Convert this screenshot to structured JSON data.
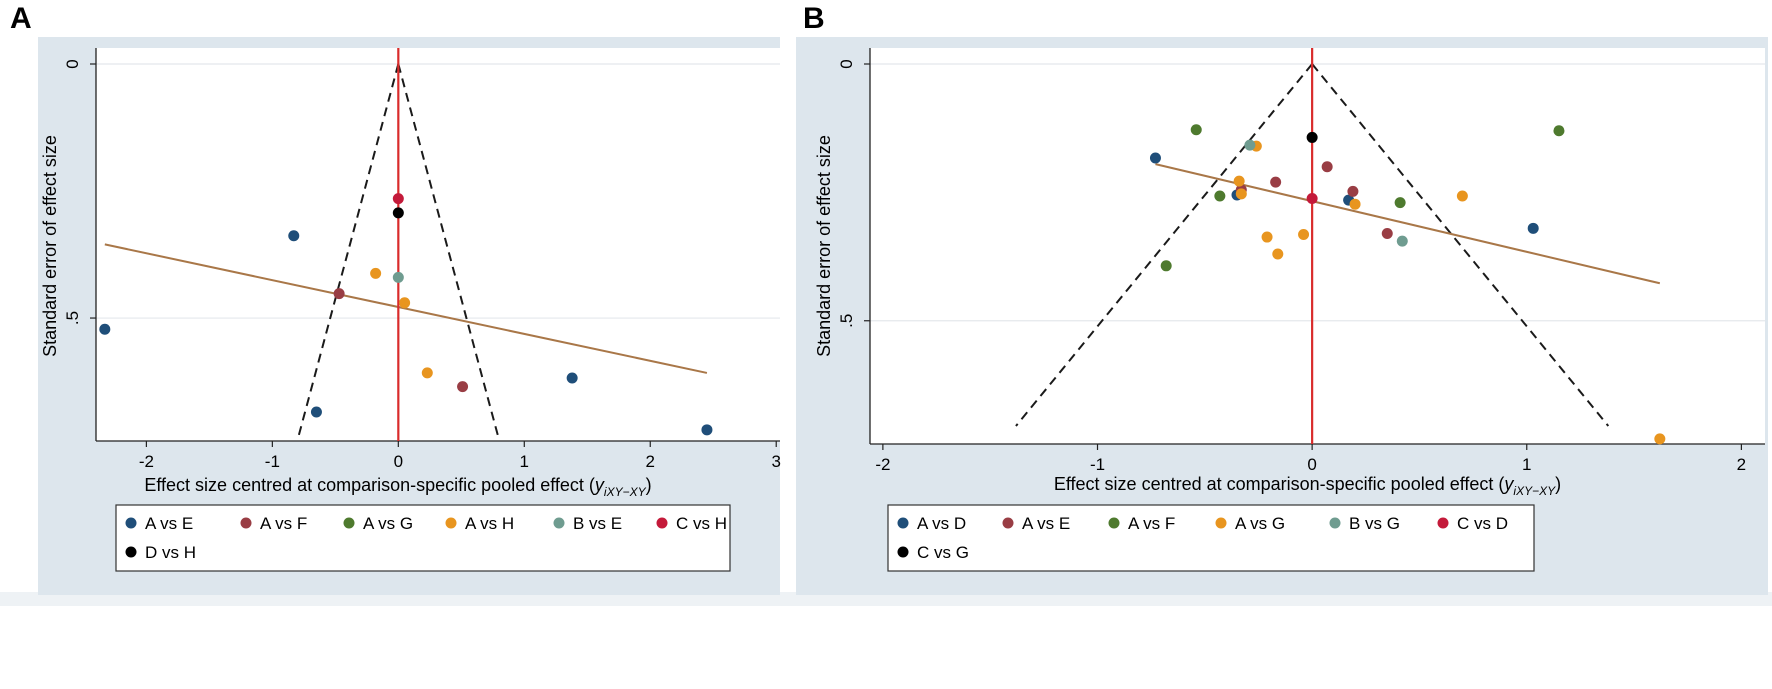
{
  "colors": {
    "panel_bg": "#dde6ed",
    "plot_bg": "#ffffff",
    "grid": "#e4e8ec",
    "zero_line": "#d92b2b",
    "regression": "#a97748",
    "funnel": "#1a1a1a",
    "legend_bg": "#ffffff"
  },
  "chart_data": [
    {
      "panel_label": "A",
      "type": "scatter",
      "subtype": "comparison-adjusted funnel plot",
      "xlabel": "Effect size centred at comparison-specific pooled effect (",
      "xlabel_math": "y",
      "xlabel_sub": "iXY",
      "xlabel_sub2": "−XY",
      "xlabel_end": ")",
      "ylabel": "Standard error of effect size",
      "xlim": [
        -2.4,
        3.03
      ],
      "ylim": [
        0,
        0.742
      ],
      "xticks": [
        -2,
        -1,
        0,
        1,
        2,
        3
      ],
      "xtick_labels": [
        "-2",
        "-1",
        "0",
        "1",
        "2",
        "3"
      ],
      "yticks": [
        0,
        0.5
      ],
      "ytick_labels": [
        "0",
        ".5"
      ],
      "funnel": {
        "apex": [
          0,
          0
        ],
        "base_se": 0.74,
        "half_width": 0.8
      },
      "regression_line": {
        "x": [
          -2.33,
          2.45
        ],
        "y": [
          0.355,
          0.608
        ]
      },
      "series": [
        {
          "name": "A vs E",
          "color": "#1f4e79",
          "points": [
            [
              -0.83,
              0.338
            ],
            [
              -2.33,
              0.522
            ],
            [
              -0.65,
              0.685
            ],
            [
              1.38,
              0.618
            ],
            [
              2.45,
              0.72
            ]
          ]
        },
        {
          "name": "A vs F",
          "color": "#993d44",
          "points": [
            [
              -0.47,
              0.452
            ],
            [
              0.51,
              0.635
            ]
          ]
        },
        {
          "name": "A vs G",
          "color": "#4e7a2e",
          "points": []
        },
        {
          "name": "A vs H",
          "color": "#e8951f",
          "points": [
            [
              -0.18,
              0.412
            ],
            [
              0.05,
              0.47
            ],
            [
              0.23,
              0.608
            ]
          ]
        },
        {
          "name": "B vs E",
          "color": "#6f9c90",
          "points": [
            [
              0.0,
              0.42
            ]
          ]
        },
        {
          "name": "C vs H",
          "color": "#c41a3a",
          "points": [
            [
              0.0,
              0.265
            ]
          ]
        },
        {
          "name": "D vs H",
          "color": "#000000",
          "points": [
            [
              0.0,
              0.293
            ]
          ]
        }
      ]
    },
    {
      "panel_label": "B",
      "type": "scatter",
      "subtype": "comparison-adjusted funnel plot",
      "xlabel": "Effect size centred at comparison-specific pooled effect (",
      "xlabel_math": "y",
      "xlabel_sub": "iXY",
      "xlabel_sub2": "−XY",
      "xlabel_end": ")",
      "ylabel": "Standard error of effect size",
      "xlim": [
        -2.06,
        2.11
      ],
      "ylim": [
        0,
        0.74
      ],
      "xticks": [
        -2,
        -1,
        0,
        1,
        2
      ],
      "xtick_labels": [
        "-2",
        "-1",
        "0",
        "1",
        "2"
      ],
      "yticks": [
        0,
        0.5
      ],
      "ytick_labels": [
        "0",
        ".5"
      ],
      "funnel": {
        "apex": [
          0,
          0
        ],
        "base_se": 0.705,
        "half_width": 1.38
      },
      "regression_line": {
        "x": [
          -0.73,
          1.62
        ],
        "y": [
          0.195,
          0.427
        ]
      },
      "series": [
        {
          "name": "A vs D",
          "color": "#1f4e79",
          "points": [
            [
              -0.73,
              0.183
            ],
            [
              -0.35,
              0.255
            ],
            [
              0.17,
              0.265
            ],
            [
              1.03,
              0.32
            ]
          ]
        },
        {
          "name": "A vs E",
          "color": "#993d44",
          "points": [
            [
              0.07,
              0.2
            ],
            [
              -0.17,
              0.23
            ],
            [
              -0.33,
              0.245
            ],
            [
              0.19,
              0.248
            ],
            [
              0.35,
              0.33
            ]
          ]
        },
        {
          "name": "A vs F",
          "color": "#4e7a2e",
          "points": [
            [
              -0.54,
              0.128
            ],
            [
              1.15,
              0.13
            ],
            [
              -0.43,
              0.257
            ],
            [
              0.41,
              0.27
            ],
            [
              -0.68,
              0.393
            ]
          ]
        },
        {
          "name": "A vs G",
          "color": "#e8951f",
          "points": [
            [
              -0.26,
              0.16
            ],
            [
              -0.34,
              0.228
            ],
            [
              -0.33,
              0.253
            ],
            [
              0.2,
              0.273
            ],
            [
              0.7,
              0.257
            ],
            [
              -0.21,
              0.337
            ],
            [
              -0.04,
              0.332
            ],
            [
              -0.16,
              0.37
            ],
            [
              1.62,
              0.73
            ]
          ]
        },
        {
          "name": "B vs G",
          "color": "#6f9c90",
          "points": [
            [
              -0.29,
              0.158
            ],
            [
              0.42,
              0.345
            ]
          ]
        },
        {
          "name": "C vs D",
          "color": "#c41a3a",
          "points": [
            [
              0.0,
              0.262
            ]
          ]
        },
        {
          "name": "C vs G",
          "color": "#000000",
          "points": [
            [
              0.0,
              0.143
            ]
          ]
        }
      ]
    }
  ]
}
